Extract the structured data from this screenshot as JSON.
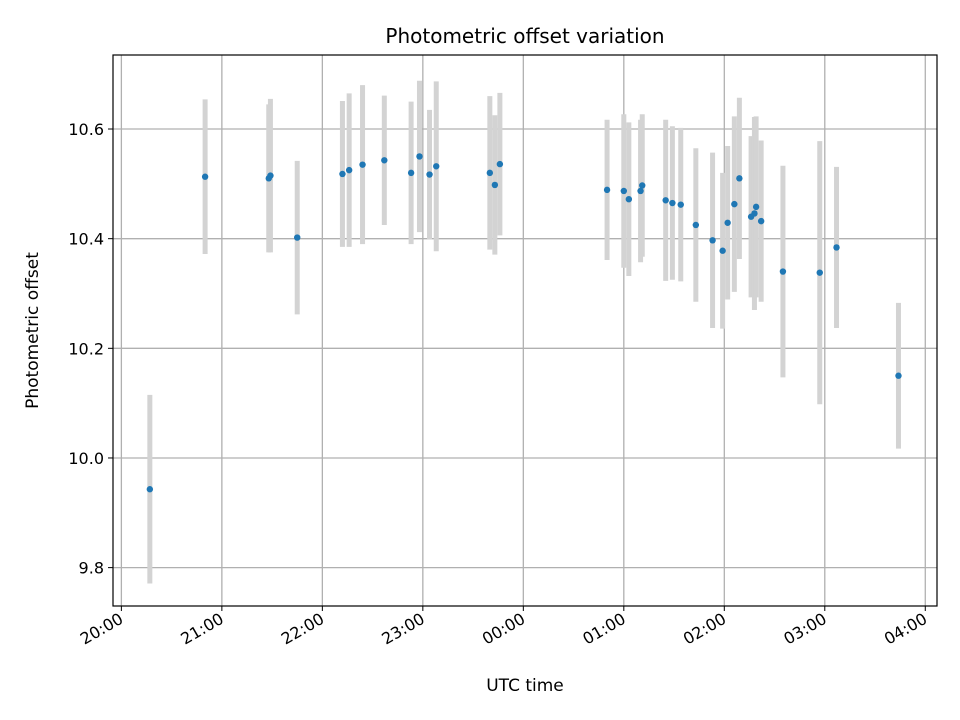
{
  "chart_data": {
    "type": "scatter",
    "title": "Photometric offset variation",
    "xlabel": "UTC time",
    "ylabel": "Photometric offset",
    "x_unit": "UTC time (HH:MM), times after midnight written as 24+ hours",
    "xlim": [
      "19:55",
      "28:07"
    ],
    "ylim": [
      9.73,
      10.735
    ],
    "xticks": [
      "20:00",
      "21:00",
      "22:00",
      "23:00",
      "00:00",
      "01:00",
      "02:00",
      "03:00",
      "04:00"
    ],
    "yticks": [
      "9.8",
      "10.0",
      "10.2",
      "10.4",
      "10.6"
    ],
    "grid": true,
    "point_color": "#1f77b4",
    "errorbar_color": "#d3d3d3",
    "series": [
      {
        "points": [
          {
            "x": "20:17",
            "y": 9.943,
            "err": 0.172
          },
          {
            "x": "20:50",
            "y": 10.513,
            "err": 0.141
          },
          {
            "x": "21:28",
            "y": 10.51,
            "err": 0.135
          },
          {
            "x": "21:29",
            "y": 10.515,
            "err": 0.14
          },
          {
            "x": "21:45",
            "y": 10.402,
            "err": 0.14
          },
          {
            "x": "22:12",
            "y": 10.518,
            "err": 0.133
          },
          {
            "x": "22:16",
            "y": 10.525,
            "err": 0.14
          },
          {
            "x": "22:24",
            "y": 10.535,
            "err": 0.145
          },
          {
            "x": "22:37",
            "y": 10.543,
            "err": 0.118
          },
          {
            "x": "22:53",
            "y": 10.52,
            "err": 0.13
          },
          {
            "x": "22:58",
            "y": 10.55,
            "err": 0.138
          },
          {
            "x": "23:04",
            "y": 10.517,
            "err": 0.118
          },
          {
            "x": "23:08",
            "y": 10.532,
            "err": 0.155
          },
          {
            "x": "23:40",
            "y": 10.52,
            "err": 0.14
          },
          {
            "x": "23:43",
            "y": 10.498,
            "err": 0.127
          },
          {
            "x": "23:46",
            "y": 10.536,
            "err": 0.13
          },
          {
            "x": "24:50",
            "y": 10.489,
            "err": 0.128
          },
          {
            "x": "25:00",
            "y": 10.487,
            "err": 0.14
          },
          {
            "x": "25:03",
            "y": 10.472,
            "err": 0.14
          },
          {
            "x": "25:10",
            "y": 10.487,
            "err": 0.13
          },
          {
            "x": "25:11",
            "y": 10.497,
            "err": 0.13
          },
          {
            "x": "25:25",
            "y": 10.47,
            "err": 0.147
          },
          {
            "x": "25:29",
            "y": 10.465,
            "err": 0.14
          },
          {
            "x": "25:34",
            "y": 10.462,
            "err": 0.14
          },
          {
            "x": "25:43",
            "y": 10.425,
            "err": 0.14
          },
          {
            "x": "25:53",
            "y": 10.397,
            "err": 0.16
          },
          {
            "x": "25:59",
            "y": 10.378,
            "err": 0.142
          },
          {
            "x": "26:02",
            "y": 10.429,
            "err": 0.14
          },
          {
            "x": "26:06",
            "y": 10.463,
            "err": 0.16
          },
          {
            "x": "26:09",
            "y": 10.51,
            "err": 0.147
          },
          {
            "x": "26:16",
            "y": 10.44,
            "err": 0.147
          },
          {
            "x": "26:18",
            "y": 10.446,
            "err": 0.176
          },
          {
            "x": "26:19",
            "y": 10.458,
            "err": 0.165
          },
          {
            "x": "26:22",
            "y": 10.432,
            "err": 0.147
          },
          {
            "x": "26:35",
            "y": 10.34,
            "err": 0.193
          },
          {
            "x": "26:57",
            "y": 10.338,
            "err": 0.24
          },
          {
            "x": "27:07",
            "y": 10.384,
            "err": 0.147
          },
          {
            "x": "27:44",
            "y": 10.15,
            "err": 0.133
          }
        ]
      }
    ]
  }
}
